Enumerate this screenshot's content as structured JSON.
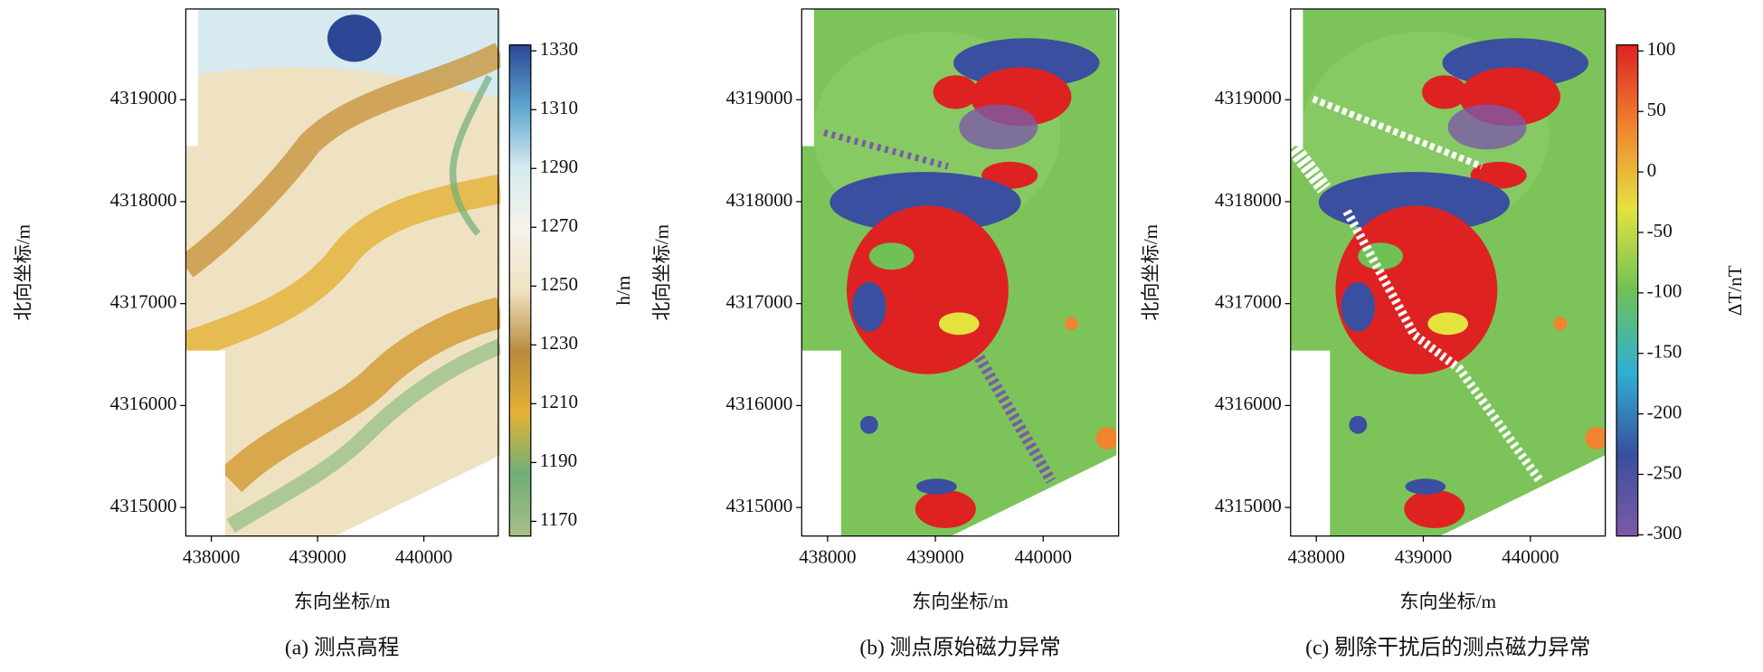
{
  "chart_data": [
    {
      "type": "map",
      "title": "(a) 测点高程",
      "xlabel": "东向坐标/m",
      "ylabel": "北向坐标/m",
      "xlim": [
        437760,
        440700
      ],
      "ylim": [
        4314720,
        4319890
      ],
      "xticks": [
        438000,
        439000,
        440000
      ],
      "yticks": [
        4315000,
        4316000,
        4317000,
        4318000,
        4319000
      ],
      "colorbar_label": "h/m",
      "clim": [
        1165,
        1332
      ],
      "cticks": [
        1170,
        1190,
        1210,
        1230,
        1250,
        1270,
        1290,
        1310,
        1330
      ],
      "colormap": [
        "#a9bf86",
        "#6fae78",
        "#e4b236",
        "#b98a3c",
        "#efe2c2",
        "#f6f3ea",
        "#d6eaf0",
        "#5da5cf",
        "#2b4796"
      ]
    },
    {
      "type": "map",
      "title": "(b) 测点原始磁力异常",
      "xlabel": "东向坐标/m",
      "ylabel": "北向坐标/m",
      "xlim": [
        437760,
        440700
      ],
      "ylim": [
        4314720,
        4319890
      ],
      "xticks": [
        438000,
        439000,
        440000
      ],
      "yticks": [
        4315000,
        4316000,
        4317000,
        4318000,
        4319000
      ]
    },
    {
      "type": "map",
      "title": "(c) 剔除干扰后的测点磁力异常",
      "xlabel": "东向坐标/m",
      "ylabel": "北向坐标/m",
      "xlim": [
        437760,
        440700
      ],
      "ylim": [
        4314720,
        4319890
      ],
      "xticks": [
        438000,
        439000,
        440000
      ],
      "yticks": [
        4315000,
        4316000,
        4317000,
        4318000,
        4319000
      ],
      "colorbar_label": "ΔT/nT",
      "clim": [
        -301,
        105
      ],
      "cticks": [
        -300,
        -250,
        -200,
        -150,
        -100,
        -50,
        0,
        50,
        100
      ],
      "colormap": [
        "#7c5aa6",
        "#3a4f9f",
        "#2fb0d2",
        "#6fc156",
        "#e4e23f",
        "#f0842f",
        "#de2222"
      ]
    }
  ]
}
